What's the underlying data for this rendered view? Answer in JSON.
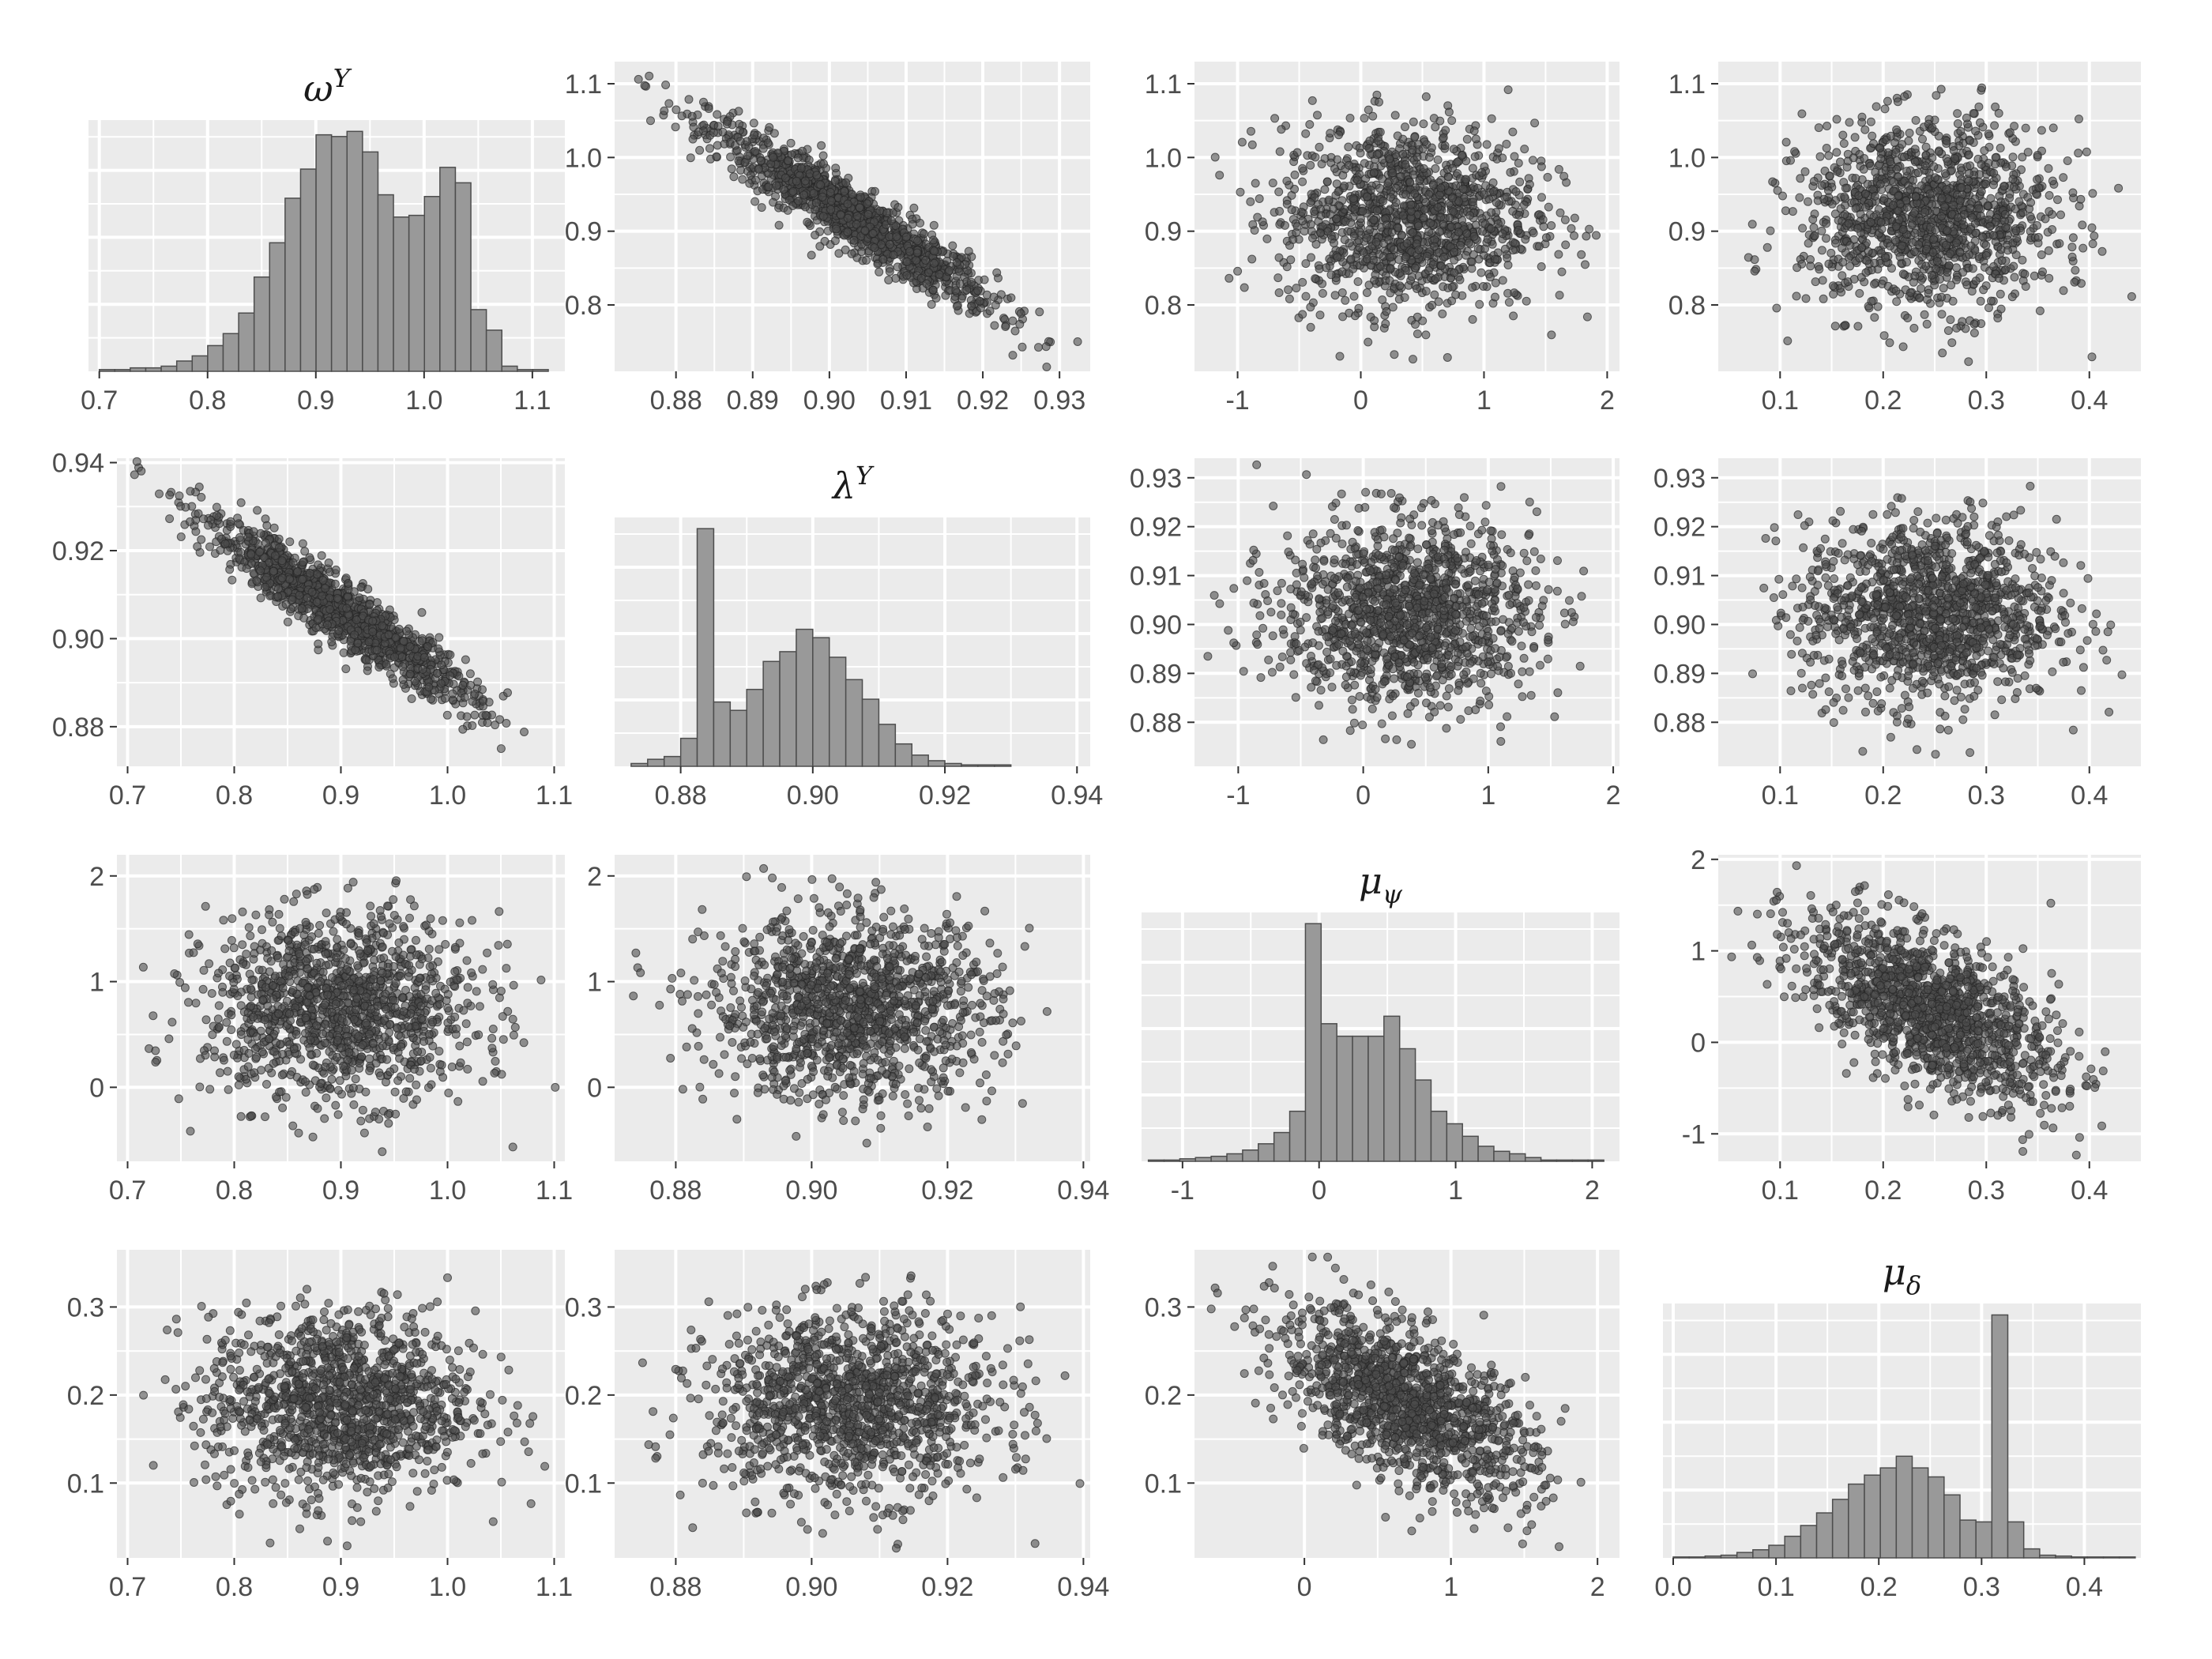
{
  "chart_data": [
    {
      "panel": "1-1",
      "type": "histogram",
      "title_base": "ω",
      "title_sup": "Y",
      "title_sub": "",
      "x": {
        "ticks": [
          0.7,
          0.8,
          0.9,
          1.0,
          1.1
        ],
        "labels": [
          "0.7",
          "0.8",
          "0.9",
          "1.0",
          "1.1"
        ],
        "lim": [
          0.69,
          1.13
        ]
      },
      "bins": {
        "start": 0.7,
        "width": 0.0143,
        "counts": [
          1,
          1,
          2,
          2,
          3,
          6,
          9,
          15,
          22,
          34,
          55,
          75,
          101,
          118,
          138,
          137,
          140,
          128,
          103,
          90,
          91,
          102,
          119,
          110,
          36,
          24,
          3,
          1,
          1
        ]
      }
    },
    {
      "panel": "1-2",
      "type": "scatter",
      "correlation": -0.94,
      "points": 1300,
      "x": {
        "ticks": [
          0.88,
          0.89,
          0.9,
          0.91,
          0.92,
          0.93
        ],
        "labels": [
          "0.88",
          "0.89",
          "0.90",
          "0.91",
          "0.92",
          "0.93"
        ],
        "lim": [
          0.872,
          0.934
        ]
      },
      "y": {
        "ticks": [
          0.8,
          0.9,
          1.0,
          1.1
        ],
        "labels": [
          "0.8",
          "0.9",
          "1.0",
          "1.1"
        ],
        "lim": [
          0.71,
          1.13
        ]
      }
    },
    {
      "panel": "1-3",
      "type": "scatter",
      "correlation": 0.0,
      "points": 1300,
      "x": {
        "ticks": [
          -1,
          0,
          1,
          2
        ],
        "labels": [
          "-1",
          "0",
          "1",
          "2"
        ],
        "lim": [
          -1.35,
          2.1
        ]
      },
      "y": {
        "ticks": [
          0.8,
          0.9,
          1.0,
          1.1
        ],
        "labels": [
          "0.8",
          "0.9",
          "1.0",
          "1.1"
        ],
        "lim": [
          0.71,
          1.13
        ]
      }
    },
    {
      "panel": "1-4",
      "type": "scatter",
      "correlation": 0.0,
      "points": 1300,
      "x": {
        "ticks": [
          0.1,
          0.2,
          0.3,
          0.4
        ],
        "labels": [
          "0.1",
          "0.2",
          "0.3",
          "0.4"
        ],
        "lim": [
          0.04,
          0.45
        ]
      },
      "y": {
        "ticks": [
          0.8,
          0.9,
          1.0,
          1.1
        ],
        "labels": [
          "0.8",
          "0.9",
          "1.0",
          "1.1"
        ],
        "lim": [
          0.71,
          1.13
        ]
      }
    },
    {
      "panel": "2-1",
      "type": "scatter",
      "correlation": -0.94,
      "points": 1300,
      "x": {
        "ticks": [
          0.7,
          0.8,
          0.9,
          1.0,
          1.1
        ],
        "labels": [
          "0.7",
          "0.8",
          "0.9",
          "1.0",
          "1.1"
        ],
        "lim": [
          0.69,
          1.11
        ]
      },
      "y": {
        "ticks": [
          0.88,
          0.9,
          0.92,
          0.94
        ],
        "labels": [
          "0.88",
          "0.90",
          "0.92",
          "0.94"
        ],
        "lim": [
          0.871,
          0.941
        ]
      }
    },
    {
      "panel": "2-2",
      "type": "histogram",
      "title_base": "λ",
      "title_sup": "Y",
      "title_sub": "",
      "x": {
        "ticks": [
          0.88,
          0.9,
          0.92,
          0.94
        ],
        "labels": [
          "0.88",
          "0.90",
          "0.92",
          "0.94"
        ],
        "lim": [
          0.87,
          0.942
        ]
      },
      "bins": {
        "start": 0.8725,
        "width": 0.0025,
        "counts": [
          2,
          5,
          7,
          20,
          170,
          46,
          40,
          55,
          75,
          82,
          98,
          92,
          78,
          62,
          48,
          30,
          16,
          8,
          4,
          2,
          1,
          1,
          1,
          0,
          0,
          0
        ]
      }
    },
    {
      "panel": "2-3",
      "type": "scatter",
      "correlation": 0.0,
      "points": 1300,
      "x": {
        "ticks": [
          -1,
          0,
          1,
          2
        ],
        "labels": [
          "-1",
          "0",
          "1",
          "2"
        ],
        "lim": [
          -1.35,
          2.05
        ]
      },
      "y": {
        "ticks": [
          0.88,
          0.89,
          0.9,
          0.91,
          0.92,
          0.93
        ],
        "labels": [
          "0.88",
          "0.89",
          "0.90",
          "0.91",
          "0.92",
          "0.93"
        ],
        "lim": [
          0.871,
          0.934
        ]
      }
    },
    {
      "panel": "2-4",
      "type": "scatter",
      "correlation": 0.0,
      "points": 1300,
      "x": {
        "ticks": [
          0.1,
          0.2,
          0.3,
          0.4
        ],
        "labels": [
          "0.1",
          "0.2",
          "0.3",
          "0.4"
        ],
        "lim": [
          0.04,
          0.45
        ]
      },
      "y": {
        "ticks": [
          0.88,
          0.89,
          0.9,
          0.91,
          0.92,
          0.93
        ],
        "labels": [
          "0.88",
          "0.89",
          "0.90",
          "0.91",
          "0.92",
          "0.93"
        ],
        "lim": [
          0.871,
          0.934
        ]
      }
    },
    {
      "panel": "3-1",
      "type": "scatter",
      "correlation": 0.0,
      "points": 1300,
      "x": {
        "ticks": [
          0.7,
          0.8,
          0.9,
          1.0,
          1.1
        ],
        "labels": [
          "0.7",
          "0.8",
          "0.9",
          "1.0",
          "1.1"
        ],
        "lim": [
          0.69,
          1.11
        ]
      },
      "y": {
        "ticks": [
          0,
          1,
          2
        ],
        "labels": [
          "0",
          "1",
          "2"
        ],
        "lim": [
          -0.7,
          2.2
        ]
      }
    },
    {
      "panel": "3-2",
      "type": "scatter",
      "correlation": 0.0,
      "points": 1300,
      "x": {
        "ticks": [
          0.88,
          0.9,
          0.92,
          0.94
        ],
        "labels": [
          "0.88",
          "0.90",
          "0.92",
          "0.94"
        ],
        "lim": [
          0.871,
          0.941
        ]
      },
      "y": {
        "ticks": [
          0,
          1,
          2
        ],
        "labels": [
          "0",
          "1",
          "2"
        ],
        "lim": [
          -0.7,
          2.2
        ]
      }
    },
    {
      "panel": "3-3",
      "type": "histogram",
      "title_base": "μ",
      "title_sup": "",
      "title_sub": "ψ",
      "x": {
        "ticks": [
          -1,
          0,
          1,
          2
        ],
        "labels": [
          "-1",
          "0",
          "1",
          "2"
        ],
        "lim": [
          -1.3,
          2.2
        ]
      },
      "bins": {
        "start": -1.25,
        "width": 0.115,
        "counts": [
          1,
          1,
          2,
          3,
          4,
          6,
          9,
          14,
          23,
          40,
          190,
          110,
          100,
          100,
          100,
          116,
          90,
          65,
          40,
          30,
          20,
          12,
          8,
          6,
          3,
          1,
          1,
          1,
          1
        ]
      }
    },
    {
      "panel": "3-4",
      "type": "scatter",
      "correlation": -0.6,
      "points": 1300,
      "x": {
        "ticks": [
          0.1,
          0.2,
          0.3,
          0.4
        ],
        "labels": [
          "0.1",
          "0.2",
          "0.3",
          "0.4"
        ],
        "lim": [
          0.04,
          0.45
        ]
      },
      "y": {
        "ticks": [
          -1,
          0,
          1,
          2
        ],
        "labels": [
          "-1",
          "0",
          "1",
          "2"
        ],
        "lim": [
          -1.3,
          2.05
        ]
      }
    },
    {
      "panel": "4-1",
      "type": "scatter",
      "correlation": 0.0,
      "points": 1300,
      "x": {
        "ticks": [
          0.7,
          0.8,
          0.9,
          1.0,
          1.1
        ],
        "labels": [
          "0.7",
          "0.8",
          "0.9",
          "1.0",
          "1.1"
        ],
        "lim": [
          0.69,
          1.11
        ]
      },
      "y": {
        "ticks": [
          0.1,
          0.2,
          0.3
        ],
        "labels": [
          "0.1",
          "0.2",
          "0.3"
        ],
        "lim": [
          0.015,
          0.365
        ]
      }
    },
    {
      "panel": "4-2",
      "type": "scatter",
      "correlation": 0.0,
      "points": 1300,
      "x": {
        "ticks": [
          0.88,
          0.9,
          0.92,
          0.94
        ],
        "labels": [
          "0.88",
          "0.90",
          "0.92",
          "0.94"
        ],
        "lim": [
          0.871,
          0.941
        ]
      },
      "y": {
        "ticks": [
          0.1,
          0.2,
          0.3
        ],
        "labels": [
          "0.1",
          "0.2",
          "0.3"
        ],
        "lim": [
          0.015,
          0.365
        ]
      }
    },
    {
      "panel": "4-3",
      "type": "scatter",
      "correlation": -0.6,
      "points": 1300,
      "x": {
        "ticks": [
          0,
          1,
          2
        ],
        "labels": [
          "0",
          "1",
          "2"
        ],
        "lim": [
          -0.75,
          2.15
        ]
      },
      "y": {
        "ticks": [
          0.1,
          0.2,
          0.3
        ],
        "labels": [
          "0.1",
          "0.2",
          "0.3"
        ],
        "lim": [
          0.015,
          0.365
        ]
      }
    },
    {
      "panel": "4-4",
      "type": "histogram",
      "title_base": "μ",
      "title_sup": "",
      "title_sub": "δ",
      "x": {
        "ticks": [
          0.0,
          0.1,
          0.2,
          0.3,
          0.4
        ],
        "labels": [
          "0.0",
          "0.1",
          "0.2",
          "0.3",
          "0.4"
        ],
        "lim": [
          -0.01,
          0.455
        ]
      },
      "bins": {
        "start": 0.0,
        "width": 0.0155,
        "counts": [
          1,
          1,
          2,
          3,
          6,
          9,
          14,
          24,
          36,
          50,
          65,
          82,
          92,
          100,
          113,
          100,
          90,
          70,
          42,
          40,
          270,
          40,
          10,
          3,
          2,
          1,
          1,
          1,
          1
        ]
      }
    }
  ]
}
